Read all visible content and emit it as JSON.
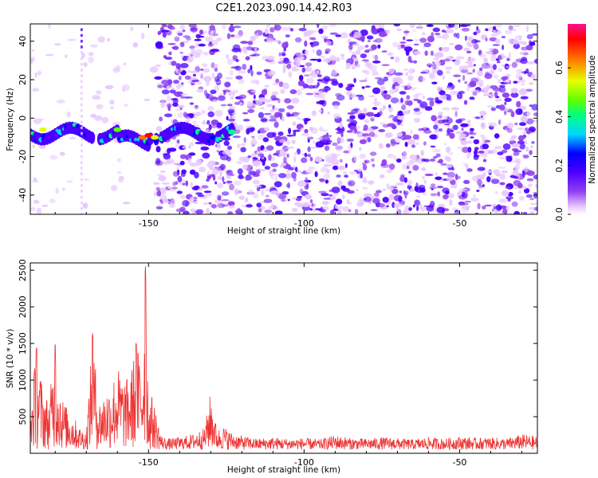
{
  "figure": {
    "title": "C2E1.2023.090.14.42.R03"
  },
  "colors": {
    "snr_line": "#ee3333",
    "axis": "#000000",
    "colormap": [
      "#ffffff",
      "#e8c8ff",
      "#9040f0",
      "#4b00ff",
      "#0000ff",
      "#00d8ff",
      "#00ff80",
      "#60ff00",
      "#e8ff00",
      "#ff7000",
      "#ff0000",
      "#ff1090"
    ]
  },
  "chart_data": [
    {
      "type": "heatmap",
      "name": "spectrogram",
      "xlabel": "Height of straight line (km)",
      "ylabel": "Frequency (Hz)",
      "xlim": [
        -188,
        -25
      ],
      "ylim": [
        -50,
        49
      ],
      "x_ticks": [
        -150,
        -100,
        -50
      ],
      "y_ticks": [
        -40,
        -20,
        0,
        20,
        40
      ],
      "colorbar": {
        "label": "Normalized spectral amplitude",
        "range": [
          0.0,
          0.78
        ],
        "ticks": [
          0.0,
          0.2,
          0.4,
          0.6
        ]
      },
      "signal_band": {
        "x_range": [
          -188,
          -123
        ],
        "freq_center": -8,
        "freq_halfwidth": 6
      },
      "noise_onset_km": -147
    },
    {
      "type": "line",
      "name": "snr",
      "xlabel": "Height of straight line (km)",
      "ylabel": "SNR (10 * v/v)",
      "xlim": [
        -188,
        -25
      ],
      "ylim": [
        0,
        2600
      ],
      "x_ticks": [
        -150,
        -100,
        -50
      ],
      "y_ticks": [
        500,
        1000,
        1500,
        2000,
        2500
      ],
      "series": [
        {
          "x": [
            -188,
            -186,
            -184,
            -182,
            -180,
            -178,
            -176,
            -174,
            -172,
            -170,
            -168,
            -166,
            -164,
            -162,
            -160,
            -158,
            -156,
            -154,
            -152,
            -151,
            -150,
            -149,
            -148,
            -147,
            -146,
            -144,
            -140,
            -136,
            -132,
            -130,
            -128,
            -126,
            -124,
            -122,
            -120,
            -115,
            -110,
            -105,
            -100,
            -95,
            -90,
            -85,
            -80,
            -75,
            -70,
            -65,
            -60,
            -55,
            -50,
            -45,
            -40,
            -35,
            -30,
            -25
          ],
          "values": [
            600,
            1450,
            900,
            700,
            1500,
            800,
            600,
            500,
            350,
            300,
            1650,
            700,
            850,
            950,
            1200,
            1000,
            1050,
            1500,
            1250,
            2600,
            700,
            800,
            650,
            450,
            250,
            200,
            220,
            260,
            350,
            850,
            320,
            380,
            300,
            260,
            240,
            200,
            220,
            200,
            210,
            190,
            250,
            210,
            200,
            220,
            210,
            190,
            220,
            200,
            230,
            210,
            220,
            200,
            260,
            230
          ],
          "noise_floor": 120
        }
      ]
    }
  ]
}
